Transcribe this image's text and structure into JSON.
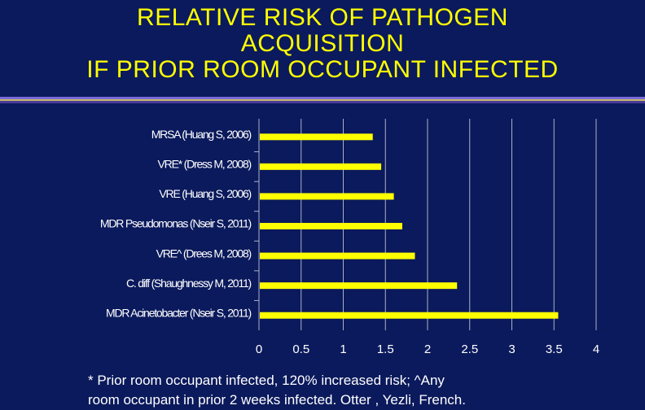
{
  "title_lines": [
    "RELATIVE RISK OF PATHOGEN",
    "ACQUISITION",
    "IF PRIOR ROOM OCCUPANT INFECTED"
  ],
  "footnote_lines": [
    "* Prior room occupant infected, 120% increased risk; ^Any",
    "room occupant in prior 2 weeks infected.  Otter , Yezli, French."
  ],
  "colors": {
    "background": "#0b1a5c",
    "bar": "#ffff00",
    "title": "#ffff00",
    "text": "#ffffff"
  },
  "chart_data": {
    "type": "bar",
    "orientation": "horizontal",
    "categories": [
      "MRSA (Huang S, 2006)",
      "VRE* (Dress M, 2008)",
      "VRE (Huang S, 2006)",
      "MDR Pseudomonas (Nseir S, 2011)",
      "VRE^ (Drees M, 2008)",
      "C. diff (Shaughnessy M, 2011)",
      "MDR Acinetobacter (Nseir S, 2011)"
    ],
    "values": [
      1.35,
      1.45,
      1.6,
      1.7,
      1.85,
      2.35,
      3.55
    ],
    "xlim": [
      0,
      4
    ],
    "xticks": [
      "0",
      "0.5",
      "1",
      "1.5",
      "2",
      "2.5",
      "3",
      "3.5",
      "4"
    ],
    "grid": "vertical",
    "legend": "none"
  }
}
